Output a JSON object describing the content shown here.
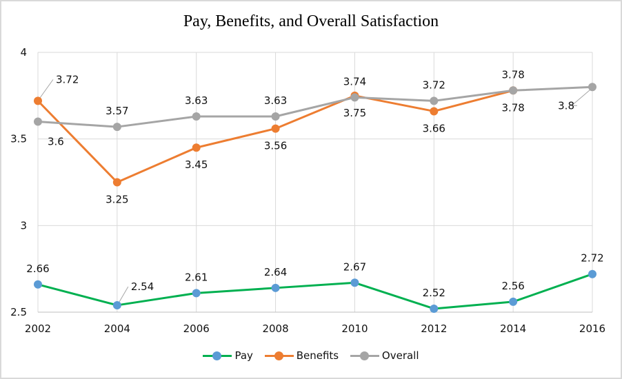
{
  "chart_data": {
    "type": "line",
    "title": "Pay, Benefits, and Overall Satisfaction",
    "xlabel": "",
    "ylabel": "",
    "categories": [
      "2002",
      "2004",
      "2006",
      "2008",
      "2010",
      "2012",
      "2014",
      "2016"
    ],
    "ylim": [
      2.5,
      4
    ],
    "yticks": [
      "2.5",
      "3",
      "3.5",
      "4"
    ],
    "grid": true,
    "legend_position": "bottom",
    "series": [
      {
        "name": "Pay",
        "line_color": "#00B050",
        "marker_color": "#5B9BD5",
        "values": [
          2.66,
          2.54,
          2.61,
          2.64,
          2.67,
          2.52,
          2.56,
          2.72
        ],
        "labels": [
          "2.66",
          "2.54",
          "2.61",
          "2.64",
          "2.67",
          "2.52",
          "2.56",
          "2.72"
        ],
        "label_position": "above"
      },
      {
        "name": "Benefits",
        "line_color": "#ED7D31",
        "marker_color": "#ED7D31",
        "values": [
          3.72,
          3.25,
          3.45,
          3.56,
          3.75,
          3.66,
          3.78,
          null
        ],
        "labels": [
          "3.72",
          "3.25",
          "3.45",
          "3.56",
          "3.75",
          "3.66",
          "3.78",
          null
        ],
        "label_position": "below"
      },
      {
        "name": "Overall",
        "line_color": "#A5A5A5",
        "marker_color": "#A5A5A5",
        "values": [
          3.6,
          3.57,
          3.63,
          3.63,
          3.74,
          3.72,
          3.78,
          3.8
        ],
        "labels": [
          "3.6",
          "3.57",
          "3.63",
          "3.63",
          "3.74",
          "3.72",
          "3.78",
          "3.8"
        ],
        "label_position": "above"
      }
    ]
  }
}
